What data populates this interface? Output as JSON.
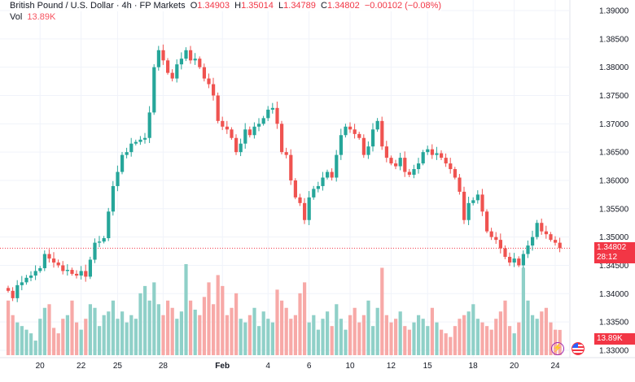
{
  "header": {
    "symbol": "British Pound / U.S. Dollar · 4h · FP Markets",
    "o_label": "O",
    "o": "1.34903",
    "h_label": "H",
    "h": "1.35014",
    "l_label": "L",
    "l": "1.34789",
    "c_label": "C",
    "c": "1.34802",
    "change": "−0.00102 (−0.08%)"
  },
  "volume": {
    "label": "Vol",
    "value": "13.89K"
  },
  "price_label": {
    "price": "1.34802",
    "countdown": "28:12"
  },
  "volume_label": "13.89K",
  "colors": {
    "up": "#26a69a",
    "down": "#ef5350",
    "vol_up": "#8fd0c8",
    "vol_down": "#f7a9a7"
  },
  "icons": [
    "lightning-icon",
    "us-flag-icon"
  ],
  "chart_data": {
    "type": "candlestick",
    "title": "British Pound / U.S. Dollar · 4h · FP Markets",
    "ylim": [
      1.3285,
      1.3915
    ],
    "yticks": [
      "1.39000",
      "1.38500",
      "1.38000",
      "1.37500",
      "1.37000",
      "1.36500",
      "1.36000",
      "1.35500",
      "1.35000",
      "1.34500",
      "1.34000",
      "1.33500",
      "1.33000"
    ],
    "xticks": [
      "20",
      "22",
      "25",
      "28",
      "Feb",
      "4",
      "6",
      "10",
      "12",
      "15",
      "18",
      "20",
      "24"
    ],
    "xtick_index": [
      7,
      16,
      24,
      34,
      47,
      57,
      66,
      75,
      84,
      92,
      102,
      111,
      120
    ],
    "closes": [
      1.3405,
      1.3392,
      1.3415,
      1.342,
      1.3428,
      1.3432,
      1.344,
      1.3445,
      1.347,
      1.3462,
      1.3455,
      1.345,
      1.344,
      1.3442,
      1.3435,
      1.3432,
      1.344,
      1.343,
      1.346,
      1.349,
      1.3492,
      1.3498,
      1.3545,
      1.359,
      1.3615,
      1.3645,
      1.365,
      1.3665,
      1.3668,
      1.3672,
      1.3675,
      1.372,
      1.38,
      1.383,
      1.3812,
      1.379,
      1.378,
      1.3805,
      1.3815,
      1.383,
      1.3812,
      1.3815,
      1.38,
      1.378,
      1.377,
      1.375,
      1.3705,
      1.3695,
      1.369,
      1.3675,
      1.365,
      1.3665,
      1.369,
      1.368,
      1.3695,
      1.37,
      1.371,
      1.3725,
      1.3728,
      1.37,
      1.365,
      1.3645,
      1.36,
      1.357,
      1.356,
      1.353,
      1.357,
      1.3585,
      1.359,
      1.3605,
      1.3615,
      1.3605,
      1.3645,
      1.368,
      1.3695,
      1.369,
      1.3682,
      1.3675,
      1.3645,
      1.366,
      1.369,
      1.3705,
      1.366,
      1.364,
      1.363,
      1.3625,
      1.364,
      1.3615,
      1.361,
      1.362,
      1.363,
      1.365,
      1.3655,
      1.3645,
      1.3648,
      1.364,
      1.363,
      1.362,
      1.3605,
      1.358,
      1.353,
      1.356,
      1.3565,
      1.3575,
      1.3545,
      1.351,
      1.35,
      1.3495,
      1.348,
      1.3465,
      1.3455,
      1.3462,
      1.345,
      1.347,
      1.3485,
      1.35,
      1.3525,
      1.351,
      1.3505,
      1.3495,
      1.349,
      1.34802
    ],
    "volumes": [
      30,
      22,
      18,
      16,
      14,
      12,
      8,
      20,
      26,
      28,
      15,
      12,
      20,
      22,
      30,
      18,
      14,
      20,
      28,
      26,
      16,
      22,
      24,
      30,
      20,
      24,
      18,
      22,
      20,
      34,
      38,
      30,
      40,
      28,
      22,
      30,
      26,
      20,
      24,
      50,
      30,
      25,
      22,
      32,
      40,
      28,
      44,
      38,
      22,
      26,
      34,
      20,
      18,
      22,
      26,
      16,
      24,
      20,
      18,
      36,
      30,
      26,
      20,
      22,
      34,
      40,
      18,
      22,
      14,
      20,
      24,
      16,
      28,
      20,
      14,
      22,
      26,
      18,
      22,
      30,
      16,
      26,
      48,
      22,
      18,
      20,
      24,
      16,
      14,
      18,
      22,
      20,
      16,
      26,
      18,
      14,
      12,
      10,
      16,
      20,
      22,
      24,
      28,
      20,
      18,
      16,
      14,
      20,
      24,
      30,
      16,
      12,
      18,
      48,
      30,
      22,
      20,
      24,
      26,
      18,
      14,
      13.89
    ]
  }
}
